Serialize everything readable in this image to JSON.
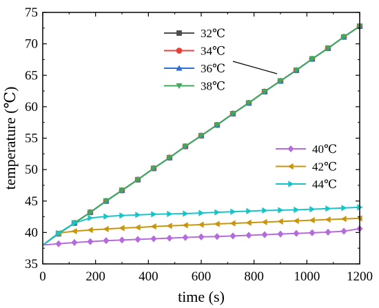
{
  "chart_data": {
    "type": "line",
    "xlabel": "time (s)",
    "ylabel": "temperature (℃)",
    "xlim": [
      0,
      1200
    ],
    "ylim": [
      35,
      75
    ],
    "xticks": [
      0,
      200,
      400,
      600,
      800,
      1000,
      1200
    ],
    "yticks": [
      35,
      40,
      45,
      50,
      55,
      60,
      65,
      70,
      75
    ],
    "grid": false,
    "legends": [
      {
        "placement": "top-center",
        "entries": [
          "32℃",
          "34℃",
          "36℃",
          "38℃"
        ]
      },
      {
        "placement": "center-right",
        "entries": [
          "40℃",
          "42℃",
          "44℃"
        ]
      }
    ],
    "x": [
      0,
      60,
      120,
      180,
      240,
      300,
      360,
      420,
      480,
      540,
      600,
      660,
      720,
      780,
      840,
      900,
      960,
      1020,
      1080,
      1140,
      1200
    ],
    "series": [
      {
        "name": "32℃",
        "color": "#4d4d4d",
        "marker": "square",
        "values": [
          38.0,
          39.8,
          41.5,
          43.2,
          45.0,
          46.7,
          48.4,
          50.2,
          51.9,
          53.7,
          55.4,
          57.1,
          58.9,
          60.6,
          62.4,
          64.1,
          65.8,
          67.6,
          69.3,
          71.1,
          72.8
        ]
      },
      {
        "name": "34℃",
        "color": "#e8413c",
        "marker": "circle",
        "values": [
          38.0,
          39.8,
          41.5,
          43.2,
          45.0,
          46.7,
          48.4,
          50.2,
          51.9,
          53.7,
          55.4,
          57.1,
          58.9,
          60.6,
          62.4,
          64.1,
          65.8,
          67.6,
          69.3,
          71.1,
          72.8
        ]
      },
      {
        "name": "36℃",
        "color": "#2b6fd6",
        "marker": "triangle-up",
        "values": [
          38.0,
          39.8,
          41.5,
          43.2,
          45.0,
          46.7,
          48.4,
          50.2,
          51.9,
          53.7,
          55.4,
          57.1,
          58.9,
          60.6,
          62.4,
          64.1,
          65.8,
          67.6,
          69.3,
          71.1,
          72.8
        ]
      },
      {
        "name": "38℃",
        "color": "#3daa5c",
        "marker": "triangle-down",
        "values": [
          38.0,
          39.8,
          41.5,
          43.2,
          45.0,
          46.7,
          48.4,
          50.2,
          51.9,
          53.7,
          55.4,
          57.1,
          58.9,
          60.6,
          62.4,
          64.1,
          65.8,
          67.6,
          69.3,
          71.1,
          72.8
        ]
      },
      {
        "name": "40℃",
        "color": "#b56bdb",
        "marker": "diamond",
        "values": [
          38.0,
          38.2,
          38.4,
          38.55,
          38.7,
          38.8,
          38.9,
          39.0,
          39.1,
          39.2,
          39.3,
          39.35,
          39.45,
          39.55,
          39.65,
          39.75,
          39.85,
          39.95,
          40.05,
          40.2,
          40.6
        ]
      },
      {
        "name": "42℃",
        "color": "#c8960c",
        "marker": "triangle-left",
        "values": [
          38.0,
          39.9,
          40.2,
          40.4,
          40.55,
          40.7,
          40.8,
          40.95,
          41.05,
          41.15,
          41.25,
          41.35,
          41.45,
          41.55,
          41.65,
          41.75,
          41.85,
          41.95,
          42.05,
          42.15,
          42.25
        ]
      },
      {
        "name": "44℃",
        "color": "#17c5c9",
        "marker": "triangle-right",
        "values": [
          38.0,
          39.9,
          41.5,
          42.3,
          42.55,
          42.7,
          42.8,
          42.9,
          42.95,
          43.0,
          43.1,
          43.2,
          43.3,
          43.4,
          43.5,
          43.55,
          43.6,
          43.7,
          43.8,
          43.9,
          44.0
        ]
      }
    ]
  }
}
